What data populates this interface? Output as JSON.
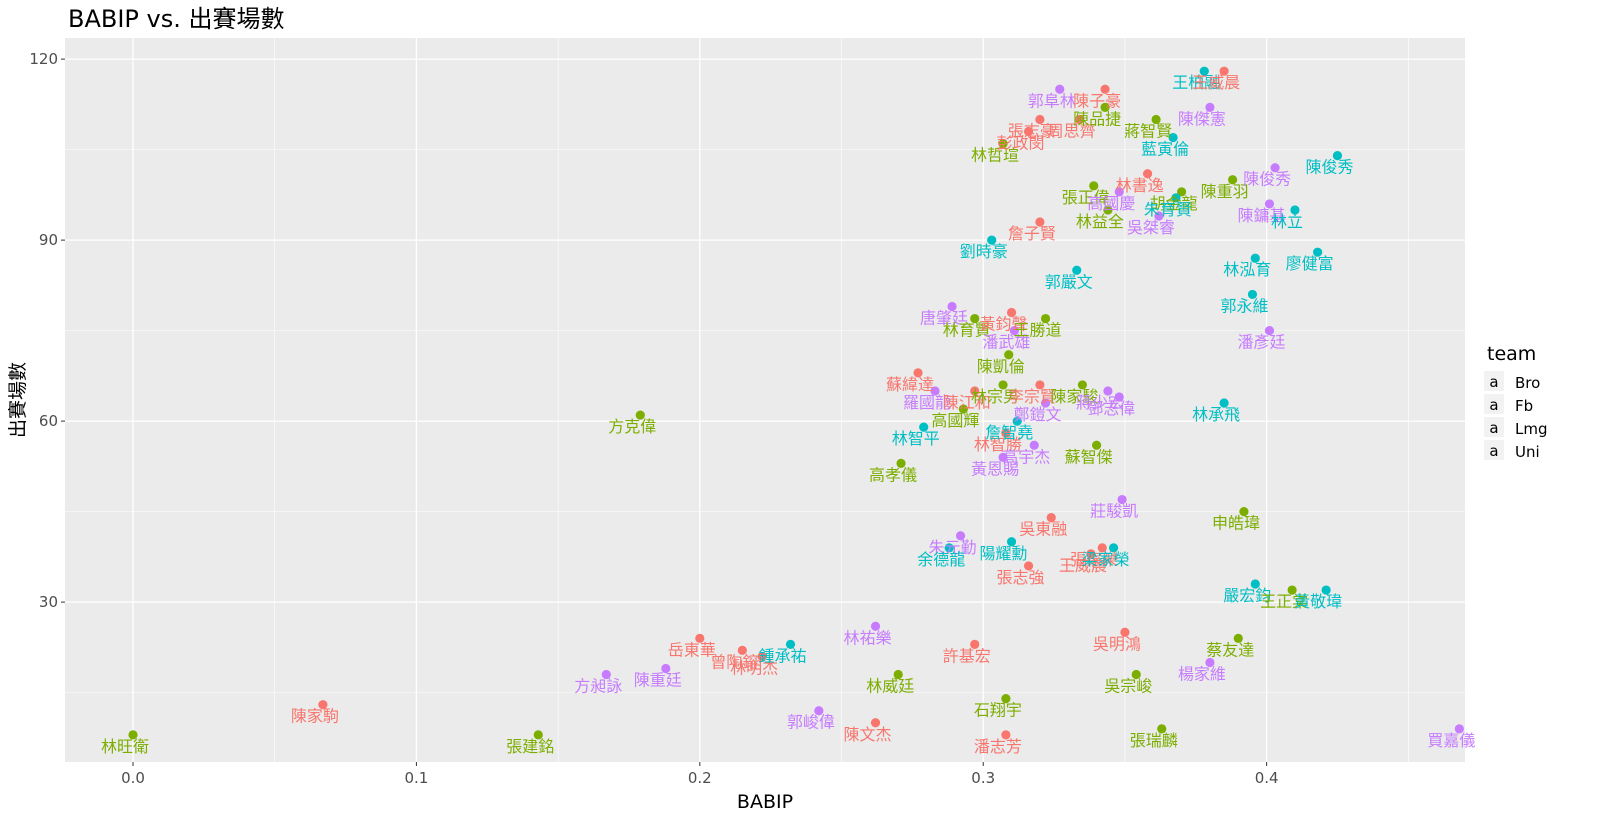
{
  "chart_data": {
    "type": "scatter",
    "title": "BABIP vs. 出賽場數",
    "xlabel": "BABIP",
    "ylabel": "出賽場數",
    "xlim": [
      -0.024,
      0.47
    ],
    "ylim": [
      3.5,
      123.5
    ],
    "x_ticks": [
      0.0,
      0.1,
      0.2,
      0.3,
      0.4
    ],
    "x_tick_labels": [
      "0.0",
      "0.1",
      "0.2",
      "0.3",
      "0.4"
    ],
    "y_ticks": [
      30,
      60,
      90,
      120
    ],
    "y_tick_labels": [
      "30",
      "60",
      "90",
      "120"
    ],
    "grid": true,
    "legend": {
      "title": "team",
      "position": "right",
      "glyph": "a",
      "entries": [
        {
          "name": "Bro",
          "color": "#F8766D"
        },
        {
          "name": "Fb",
          "color": "#7CAE00"
        },
        {
          "name": "Lmg",
          "color": "#00BFC4"
        },
        {
          "name": "Uni",
          "color": "#C77CFF"
        }
      ]
    },
    "points": [
      {
        "x": 0.0,
        "y": 8,
        "team": "Fb",
        "label": "林旺衛"
      },
      {
        "x": 0.067,
        "y": 13,
        "team": "Bro",
        "label": "陳家駒"
      },
      {
        "x": 0.143,
        "y": 8,
        "team": "Fb",
        "label": "張建銘"
      },
      {
        "x": 0.179,
        "y": 61,
        "team": "Fb",
        "label": "方克偉"
      },
      {
        "x": 0.167,
        "y": 18,
        "team": "Uni",
        "label": "方昶詠"
      },
      {
        "x": 0.188,
        "y": 19,
        "team": "Uni",
        "label": "陳重廷"
      },
      {
        "x": 0.2,
        "y": 24,
        "team": "Bro",
        "label": "岳東華"
      },
      {
        "x": 0.215,
        "y": 22,
        "team": "Bro",
        "label": "曾陶鎔"
      },
      {
        "x": 0.222,
        "y": 21,
        "team": "Bro",
        "label": "林明杰"
      },
      {
        "x": 0.232,
        "y": 23,
        "team": "Lmg",
        "label": "鍾承祐"
      },
      {
        "x": 0.242,
        "y": 12,
        "team": "Uni",
        "label": "郭峻偉"
      },
      {
        "x": 0.262,
        "y": 26,
        "team": "Uni",
        "label": "林祐樂"
      },
      {
        "x": 0.262,
        "y": 10,
        "team": "Bro",
        "label": "陳文杰"
      },
      {
        "x": 0.27,
        "y": 18,
        "team": "Fb",
        "label": "林威廷"
      },
      {
        "x": 0.297,
        "y": 23,
        "team": "Bro",
        "label": "許基宏"
      },
      {
        "x": 0.308,
        "y": 14,
        "team": "Fb",
        "label": "石翔宇"
      },
      {
        "x": 0.308,
        "y": 8,
        "team": "Bro",
        "label": "潘志芳"
      },
      {
        "x": 0.35,
        "y": 25,
        "team": "Bro",
        "label": "吳明鴻"
      },
      {
        "x": 0.363,
        "y": 9,
        "team": "Fb",
        "label": "張瑞麟"
      },
      {
        "x": 0.354,
        "y": 18,
        "team": "Fb",
        "label": "吳宗峻"
      },
      {
        "x": 0.38,
        "y": 20,
        "team": "Uni",
        "label": "楊家維"
      },
      {
        "x": 0.39,
        "y": 24,
        "team": "Fb",
        "label": "蔡友達"
      },
      {
        "x": 0.468,
        "y": 9,
        "team": "Uni",
        "label": "買嘉儀"
      },
      {
        "x": 0.292,
        "y": 41,
        "team": "Uni",
        "label": "朱元勤"
      },
      {
        "x": 0.288,
        "y": 39,
        "team": "Lmg",
        "label": "余德龍"
      },
      {
        "x": 0.31,
        "y": 40,
        "team": "Lmg",
        "label": "陽耀勳"
      },
      {
        "x": 0.316,
        "y": 36,
        "team": "Bro",
        "label": "張志強"
      },
      {
        "x": 0.324,
        "y": 44,
        "team": "Bro",
        "label": "吳東融"
      },
      {
        "x": 0.338,
        "y": 38,
        "team": "Bro",
        "label": "王威晨"
      },
      {
        "x": 0.342,
        "y": 39,
        "team": "Bro",
        "label": "張家樂"
      },
      {
        "x": 0.346,
        "y": 39,
        "team": "Lmg",
        "label": "梁家榮"
      },
      {
        "x": 0.349,
        "y": 47,
        "team": "Uni",
        "label": "莊駿凱"
      },
      {
        "x": 0.392,
        "y": 45,
        "team": "Fb",
        "label": "申皓瑋"
      },
      {
        "x": 0.396,
        "y": 33,
        "team": "Lmg",
        "label": "嚴宏鈞"
      },
      {
        "x": 0.409,
        "y": 32,
        "team": "Fb",
        "label": "王正棠"
      },
      {
        "x": 0.421,
        "y": 32,
        "team": "Lmg",
        "label": "黃敬瑋"
      },
      {
        "x": 0.271,
        "y": 53,
        "team": "Fb",
        "label": "高孝儀"
      },
      {
        "x": 0.279,
        "y": 59,
        "team": "Lmg",
        "label": "林智平"
      },
      {
        "x": 0.277,
        "y": 68,
        "team": "Bro",
        "label": "蘇緯達"
      },
      {
        "x": 0.283,
        "y": 65,
        "team": "Uni",
        "label": "羅國龍"
      },
      {
        "x": 0.293,
        "y": 62,
        "team": "Fb",
        "label": "高國輝"
      },
      {
        "x": 0.297,
        "y": 65,
        "team": "Bro",
        "label": "陳江和"
      },
      {
        "x": 0.307,
        "y": 66,
        "team": "Fb",
        "label": "林宗男"
      },
      {
        "x": 0.308,
        "y": 58,
        "team": "Bro",
        "label": "林智勝"
      },
      {
        "x": 0.307,
        "y": 54,
        "team": "Uni",
        "label": "黃恩賜"
      },
      {
        "x": 0.312,
        "y": 60,
        "team": "Lmg",
        "label": "詹智堯"
      },
      {
        "x": 0.318,
        "y": 56,
        "team": "Uni",
        "label": "高宇杰"
      },
      {
        "x": 0.32,
        "y": 66,
        "team": "Bro",
        "label": "李宗賢"
      },
      {
        "x": 0.322,
        "y": 63,
        "team": "Uni",
        "label": "鄭鎧文"
      },
      {
        "x": 0.335,
        "y": 66,
        "team": "Fb",
        "label": "陳家駿"
      },
      {
        "x": 0.34,
        "y": 56,
        "team": "Fb",
        "label": "蘇智傑"
      },
      {
        "x": 0.344,
        "y": 65,
        "team": "Uni",
        "label": "蔣少宏"
      },
      {
        "x": 0.348,
        "y": 64,
        "team": "Uni",
        "label": "鄧志偉"
      },
      {
        "x": 0.385,
        "y": 63,
        "team": "Lmg",
        "label": "林承飛"
      },
      {
        "x": 0.309,
        "y": 71,
        "team": "Fb",
        "label": "陳凱倫"
      },
      {
        "x": 0.289,
        "y": 79,
        "team": "Uni",
        "label": "唐肇廷"
      },
      {
        "x": 0.297,
        "y": 77,
        "team": "Fb",
        "label": "林育賢"
      },
      {
        "x": 0.31,
        "y": 78,
        "team": "Bro",
        "label": "黃鈞聲"
      },
      {
        "x": 0.311,
        "y": 75,
        "team": "Uni",
        "label": "潘武雄"
      },
      {
        "x": 0.322,
        "y": 77,
        "team": "Fb",
        "label": "王勝道"
      },
      {
        "x": 0.401,
        "y": 75,
        "team": "Uni",
        "label": "潘彥廷"
      },
      {
        "x": 0.333,
        "y": 85,
        "team": "Lmg",
        "label": "郭嚴文"
      },
      {
        "x": 0.303,
        "y": 90,
        "team": "Lmg",
        "label": "劉時豪"
      },
      {
        "x": 0.32,
        "y": 93,
        "team": "Bro",
        "label": "詹子賢"
      },
      {
        "x": 0.339,
        "y": 99,
        "team": "Fb",
        "label": "張正偉"
      },
      {
        "x": 0.344,
        "y": 95,
        "team": "Fb",
        "label": "林益全"
      },
      {
        "x": 0.348,
        "y": 98,
        "team": "Uni",
        "label": "高國慶"
      },
      {
        "x": 0.358,
        "y": 101,
        "team": "Bro",
        "label": "林書逸"
      },
      {
        "x": 0.37,
        "y": 98,
        "team": "Fb",
        "label": "胡金龍"
      },
      {
        "x": 0.368,
        "y": 97,
        "team": "Lmg",
        "label": "朱育賢"
      },
      {
        "x": 0.362,
        "y": 94,
        "team": "Uni",
        "label": "吳桀睿"
      },
      {
        "x": 0.388,
        "y": 100,
        "team": "Fb",
        "label": "陳重羽"
      },
      {
        "x": 0.396,
        "y": 87,
        "team": "Lmg",
        "label": "林泓育"
      },
      {
        "x": 0.395,
        "y": 81,
        "team": "Lmg",
        "label": "郭永維"
      },
      {
        "x": 0.401,
        "y": 96,
        "team": "Uni",
        "label": "陳鏞基"
      },
      {
        "x": 0.41,
        "y": 95,
        "team": "Lmg",
        "label": "林立"
      },
      {
        "x": 0.418,
        "y": 88,
        "team": "Lmg",
        "label": "廖健富"
      },
      {
        "x": 0.403,
        "y": 102,
        "team": "Uni",
        "label": "陳俊秀"
      },
      {
        "x": 0.425,
        "y": 104,
        "team": "Lmg",
        "label": "陳俊秀2"
      },
      {
        "x": 0.307,
        "y": 106,
        "team": "Fb",
        "label": "林哲瑄"
      },
      {
        "x": 0.316,
        "y": 108,
        "team": "Bro",
        "label": "彭政閔"
      },
      {
        "x": 0.32,
        "y": 110,
        "team": "Bro",
        "label": "張志豪"
      },
      {
        "x": 0.334,
        "y": 110,
        "team": "Bro",
        "label": "周思齊"
      },
      {
        "x": 0.327,
        "y": 115,
        "team": "Uni",
        "label": "郭阜林"
      },
      {
        "x": 0.343,
        "y": 112,
        "team": "Fb",
        "label": "陳品捷"
      },
      {
        "x": 0.343,
        "y": 115,
        "team": "Bro",
        "label": "陳子豪"
      },
      {
        "x": 0.361,
        "y": 110,
        "team": "Fb",
        "label": "蔣智賢"
      },
      {
        "x": 0.367,
        "y": 107,
        "team": "Lmg",
        "label": "藍寅倫"
      },
      {
        "x": 0.38,
        "y": 112,
        "team": "Uni",
        "label": "陳傑憲"
      },
      {
        "x": 0.378,
        "y": 118,
        "team": "Lmg",
        "label": "王柏融"
      },
      {
        "x": 0.385,
        "y": 118,
        "team": "Bro",
        "label": "王威晨2"
      }
    ]
  }
}
